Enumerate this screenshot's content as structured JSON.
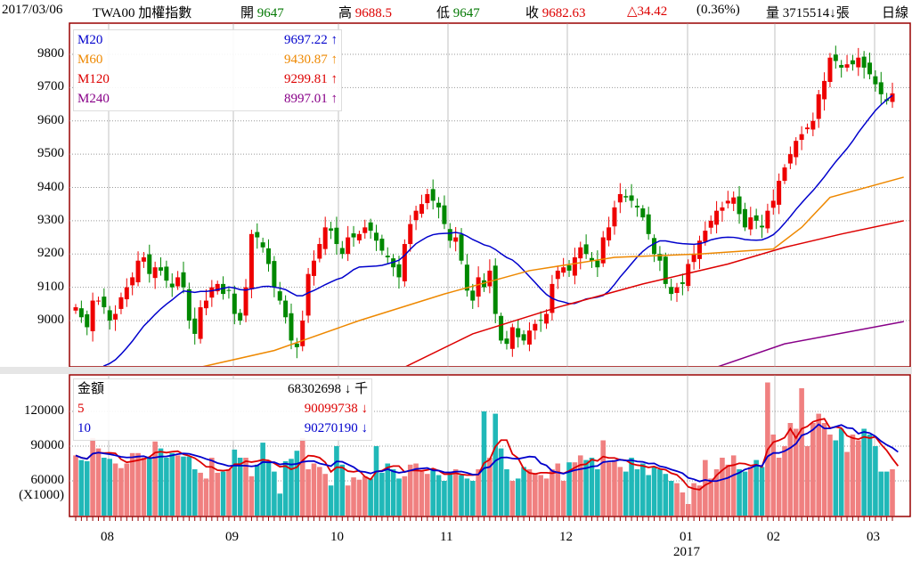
{
  "header": {
    "date": "2017/03/06",
    "symbol": "TWA00 加權指數",
    "open_label": "開",
    "open": "9647",
    "high_label": "高",
    "high": "9688.5",
    "low_label": "低",
    "low": "9647",
    "close_label": "收",
    "close": "9682.63",
    "change": "△34.42",
    "pct": "(0.36%)",
    "volume_label": "量",
    "volume": "3715514↓張",
    "period": "日線"
  },
  "price_legend": [
    {
      "name": "M20",
      "value": "9697.22 ↑",
      "color": "#0000cc"
    },
    {
      "name": "M60",
      "value": "9430.87 ↑",
      "color": "#ee8800"
    },
    {
      "name": "M120",
      "value": "9299.81 ↑",
      "color": "#dd0000"
    },
    {
      "name": "M240",
      "value": "8997.01 ↑",
      "color": "#880088"
    }
  ],
  "volume_legend": [
    {
      "name": "金額",
      "value": "68302698 ↓ 千",
      "color": "#000000"
    },
    {
      "name": "5",
      "value": "90099738 ↓",
      "color": "#dd0000"
    },
    {
      "name": "10",
      "value": "90270190 ↓",
      "color": "#0000cc"
    }
  ],
  "chart_data": [
    {
      "type": "candlestick",
      "title": "TWA00 加權指數 日線",
      "ylim": [
        8861,
        9888
      ],
      "yticks": [
        "9800",
        "9700",
        "9600",
        "9500",
        "9400",
        "9300",
        "9200",
        "9100",
        "9000"
      ],
      "xticks": [
        "08",
        "09",
        "10",
        "11",
        "12",
        "01",
        "02",
        "03"
      ],
      "xlabel_year": "2017",
      "closes": [
        9040,
        9010,
        8980,
        9060,
        9060,
        9040,
        9000,
        9020,
        9070,
        9100,
        9130,
        9180,
        9190,
        9140,
        9160,
        9150,
        9120,
        9100,
        9130,
        9100,
        9000,
        8960,
        9040,
        9060,
        9100,
        9110,
        9080,
        9090,
        9020,
        9000,
        9100,
        9260,
        9250,
        9220,
        9170,
        9100,
        9060,
        9010,
        8940,
        8920,
        9000,
        9140,
        9180,
        9230,
        9280,
        9270,
        9230,
        9200,
        9250,
        9250,
        9260,
        9280,
        9270,
        9240,
        9210,
        9190,
        9160,
        9130,
        9230,
        9290,
        9330,
        9350,
        9380,
        9360,
        9340,
        9290,
        9240,
        9250,
        9180,
        9090,
        9060,
        9130,
        9100,
        9150,
        9020,
        8940,
        8930,
        8980,
        8950,
        8940,
        8970,
        8990,
        9000,
        9020,
        9110,
        9150,
        9160,
        9150,
        9190,
        9220,
        9200,
        9180,
        9160,
        9250,
        9280,
        9340,
        9380,
        9370,
        9360,
        9340,
        9310,
        9260,
        9200,
        9180,
        9110,
        9080,
        9100,
        9110,
        9170,
        9200,
        9240,
        9270,
        9300,
        9330,
        9340,
        9360,
        9370,
        9320,
        9280,
        9310,
        9300,
        9280,
        9330,
        9360,
        9420,
        9460,
        9500,
        9540,
        9560,
        9580,
        9600,
        9680,
        9720,
        9790,
        9780,
        9760,
        9770,
        9770,
        9790,
        9760,
        9740,
        9710,
        9680,
        9660,
        9682.63
      ],
      "ma_lines": {
        "M60": [
          [
            22,
            8860
          ],
          [
            35,
            8910
          ],
          [
            50,
            9000
          ],
          [
            65,
            9080
          ],
          [
            80,
            9150
          ],
          [
            95,
            9190
          ],
          [
            110,
            9200
          ],
          [
            123,
            9215
          ],
          [
            128,
            9280
          ],
          [
            133,
            9370
          ],
          [
            146,
            9430.87
          ]
        ],
        "M120": [
          [
            58,
            8860
          ],
          [
            70,
            8960
          ],
          [
            85,
            9040
          ],
          [
            100,
            9110
          ],
          [
            115,
            9170
          ],
          [
            125,
            9220
          ],
          [
            135,
            9260
          ],
          [
            146,
            9299.81
          ]
        ],
        "M240": [
          [
            113,
            8860
          ],
          [
            125,
            8930
          ],
          [
            146,
            8997.01
          ]
        ]
      }
    },
    {
      "type": "bar",
      "title": "金額",
      "unit": "(X1000)",
      "ylim": [
        30000,
        149000
      ],
      "yticks": [
        "120000",
        "90000",
        "60000"
      ],
      "values": [
        82,
        78,
        77,
        97,
        88,
        80,
        79,
        75,
        71,
        75,
        84,
        84,
        80,
        80,
        94,
        88,
        80,
        84,
        82,
        81,
        81,
        70,
        67,
        62,
        80,
        67,
        68,
        70,
        87,
        80,
        80,
        64,
        74,
        93,
        77,
        68,
        49,
        77,
        79,
        86,
        97,
        70,
        75,
        72,
        66,
        56,
        90,
        74,
        56,
        63,
        61,
        64,
        62,
        90,
        67,
        75,
        70,
        62,
        64,
        74,
        75,
        68,
        66,
        70,
        65,
        60,
        68,
        70,
        65,
        62,
        60,
        70,
        120,
        80,
        118,
        88,
        70,
        60,
        62,
        72,
        70,
        66,
        65,
        62,
        70,
        75,
        60,
        76,
        76,
        82,
        78,
        80,
        70,
        95,
        76,
        78,
        72,
        68,
        80,
        70,
        75,
        65,
        72,
        70,
        66,
        60,
        58,
        50,
        40,
        58,
        56,
        78,
        62,
        70,
        80,
        74,
        82,
        70,
        68,
        72,
        78,
        72,
        145,
        100,
        80,
        90,
        110,
        105,
        140,
        90,
        110,
        118,
        110,
        100,
        95,
        105,
        85,
        100,
        95,
        105,
        100,
        90,
        68,
        68,
        70,
        68.3
      ]
    }
  ]
}
